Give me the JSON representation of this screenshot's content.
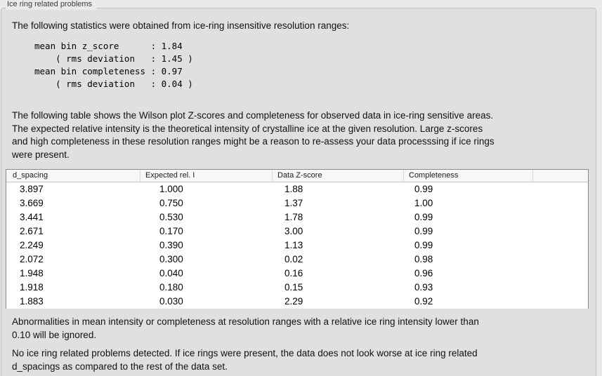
{
  "colors": {
    "window_bg": "#eaeaea",
    "panel_bg": "#e0e0e0",
    "table_border": "#8a8a8a",
    "header_bg": "#f7f7f7"
  },
  "group": {
    "label": "Ice ring related problems"
  },
  "intro": "The following statistics were obtained from ice-ring insensitive resolution ranges:",
  "stats_block": "mean bin z_score      : 1.84\n    ( rms deviation   : 1.45 )\nmean bin completeness : 0.97\n    ( rms deviation   : 0.04 )",
  "table_note": "The following table shows the Wilson plot Z-scores and completeness for observed data in ice-ring sensitive areas.\nThe expected relative intensity is the theoretical intensity of crystalline ice at the given resolution. Large z-scores\nand high completeness in these resolution ranges might be a reason to re-assess your data processsing if ice rings\nwere present.",
  "table": {
    "headers": [
      "d_spacing",
      "Expected rel. I",
      "Data Z-score",
      "Completeness"
    ],
    "rows": [
      [
        "3.897",
        "1.000",
        "1.88",
        "0.99"
      ],
      [
        "3.669",
        "0.750",
        "1.37",
        "1.00"
      ],
      [
        "3.441",
        "0.530",
        "1.78",
        "0.99"
      ],
      [
        "2.671",
        "0.170",
        "3.00",
        "0.99"
      ],
      [
        "2.249",
        "0.390",
        "1.13",
        "0.99"
      ],
      [
        "2.072",
        "0.300",
        "0.02",
        "0.98"
      ],
      [
        "1.948",
        "0.040",
        "0.16",
        "0.96"
      ],
      [
        "1.918",
        "0.180",
        "0.15",
        "0.93"
      ],
      [
        "1.883",
        "0.030",
        "2.29",
        "0.92"
      ]
    ]
  },
  "ignore_note": "Abnormalities in mean intensity or completeness at resolution ranges with a relative ice ring intensity lower than\n0.10 will be ignored.",
  "conclusion": "No ice ring related problems detected. If ice rings were present, the data does not look worse at ice ring related\nd_spacings as compared to the rest of the data set."
}
